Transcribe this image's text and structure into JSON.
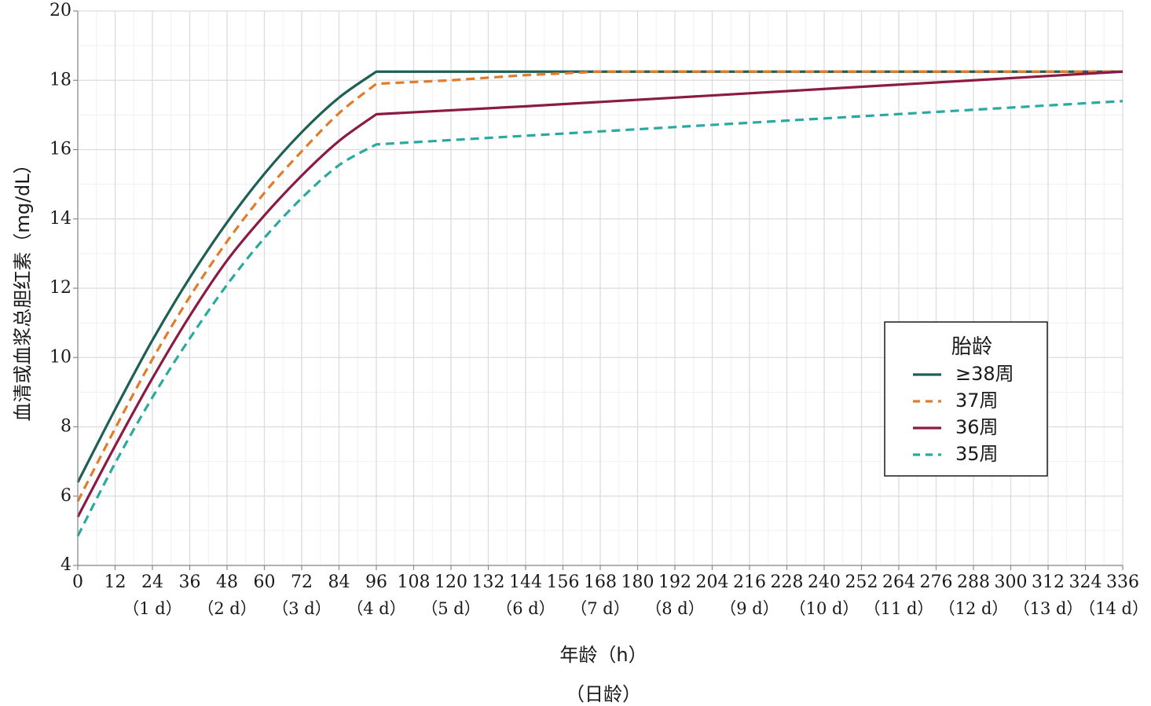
{
  "chart_data": {
    "type": "line",
    "xlabel": "年龄（h）",
    "xlabel2": "（日龄）",
    "ylabel": "血清或血浆总胆红素（mg/dL）",
    "xlim": [
      0,
      336
    ],
    "ylim": [
      4,
      20
    ],
    "grid": true,
    "legend_position": "right",
    "legend_title": "胎龄",
    "x_ticks": [
      0,
      12,
      24,
      36,
      48,
      60,
      72,
      84,
      96,
      108,
      120,
      132,
      144,
      156,
      168,
      180,
      192,
      204,
      216,
      228,
      240,
      252,
      264,
      276,
      288,
      300,
      312,
      324,
      336
    ],
    "x_tick_labels": [
      "0",
      "12",
      "24",
      "36",
      "48",
      "60",
      "72",
      "84",
      "96",
      "108",
      "120",
      "132",
      "144",
      "156",
      "168",
      "180",
      "192",
      "204",
      "216",
      "228",
      "240",
      "252",
      "264",
      "276",
      "288",
      "300",
      "312",
      "324",
      "336"
    ],
    "y_ticks": [
      4,
      6,
      8,
      10,
      12,
      14,
      16,
      18,
      20
    ],
    "y_tick_labels": [
      "4",
      "6",
      "8",
      "10",
      "12",
      "14",
      "16",
      "18",
      "20"
    ],
    "day_labels": [
      {
        "x": 24,
        "label": "（1 d）"
      },
      {
        "x": 48,
        "label": "（2 d）"
      },
      {
        "x": 72,
        "label": "（3 d）"
      },
      {
        "x": 96,
        "label": "（4 d）"
      },
      {
        "x": 120,
        "label": "（5 d）"
      },
      {
        "x": 144,
        "label": "（6 d）"
      },
      {
        "x": 168,
        "label": "（7 d）"
      },
      {
        "x": 192,
        "label": "（8 d）"
      },
      {
        "x": 216,
        "label": "（9 d）"
      },
      {
        "x": 240,
        "label": "（10 d）"
      },
      {
        "x": 264,
        "label": "（11 d）"
      },
      {
        "x": 288,
        "label": "（12 d）"
      },
      {
        "x": 312,
        "label": "（13 d）"
      },
      {
        "x": 336,
        "label": "（14 d）"
      }
    ],
    "series": [
      {
        "name": "≥38周",
        "color": "#1e5f56",
        "dash": "solid",
        "x": [
          0,
          12,
          24,
          36,
          48,
          60,
          72,
          84,
          96,
          120,
          168,
          216,
          264,
          312,
          336
        ],
        "y": [
          6.4,
          8.5,
          10.5,
          12.3,
          13.9,
          15.3,
          16.5,
          17.5,
          18.25,
          18.25,
          18.25,
          18.25,
          18.25,
          18.25,
          18.25
        ]
      },
      {
        "name": "37周",
        "color": "#e07c2a",
        "dash": "dashed",
        "x": [
          0,
          12,
          24,
          36,
          48,
          60,
          72,
          84,
          96,
          120,
          144,
          168,
          216,
          264,
          312,
          336
        ],
        "y": [
          5.85,
          7.95,
          9.95,
          11.75,
          13.35,
          14.75,
          15.95,
          17.05,
          17.9,
          18.0,
          18.15,
          18.25,
          18.25,
          18.25,
          18.25,
          18.25
        ]
      },
      {
        "name": "36周",
        "color": "#8b1a44",
        "dash": "solid",
        "x": [
          0,
          12,
          24,
          36,
          48,
          60,
          72,
          84,
          96,
          144,
          192,
          240,
          288,
          336
        ],
        "y": [
          5.4,
          7.45,
          9.4,
          11.2,
          12.8,
          14.1,
          15.25,
          16.25,
          17.02,
          17.25,
          17.5,
          17.75,
          18.0,
          18.25
        ]
      },
      {
        "name": "35周",
        "color": "#2aa9a0",
        "dash": "dashed",
        "x": [
          0,
          12,
          24,
          36,
          48,
          60,
          72,
          84,
          96,
          144,
          192,
          240,
          288,
          336
        ],
        "y": [
          4.85,
          6.95,
          8.85,
          10.55,
          12.1,
          13.45,
          14.6,
          15.55,
          16.15,
          16.4,
          16.65,
          16.9,
          17.15,
          17.4
        ]
      }
    ]
  }
}
